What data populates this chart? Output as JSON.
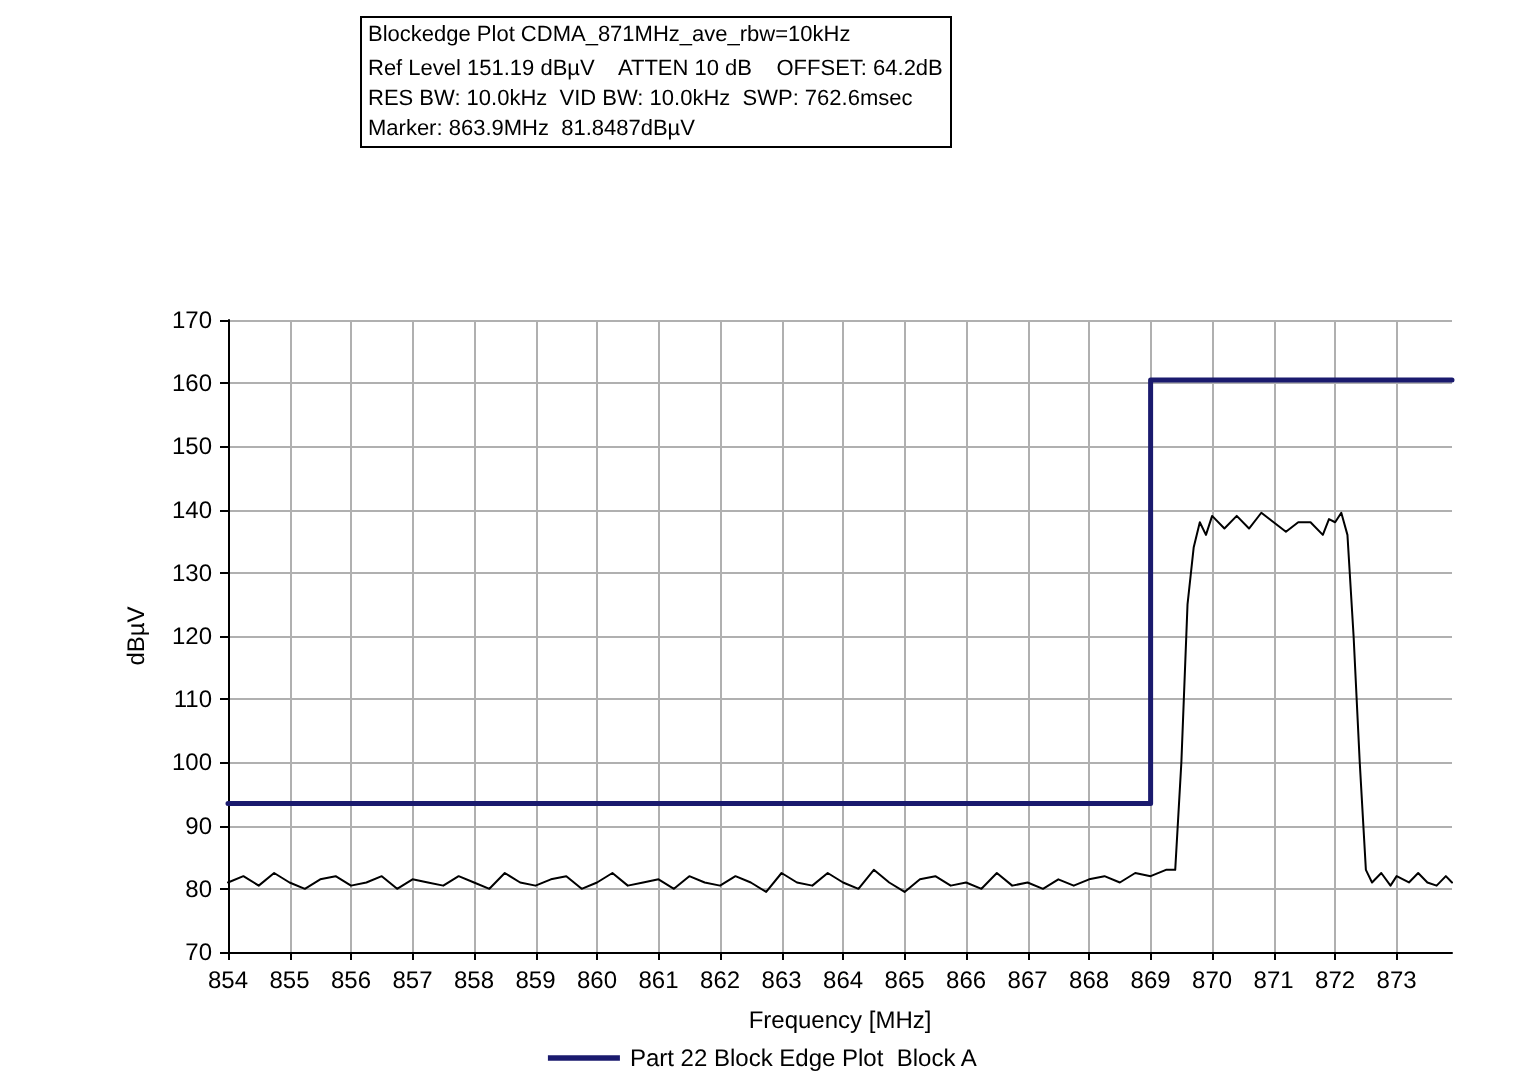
{
  "chart_data": {
    "type": "line",
    "title": "Blockedge Plot CDMA_871MHz_ave_rbw=10kHz",
    "annotations": [
      "Ref Level 151.19 dBµV    ATTEN 10 dB    OFFSET: 64.2dB",
      "RES BW: 10.0kHz  VID BW: 10.0kHz  SWP: 762.6msec",
      "Marker: 863.9MHz  81.8487dBµV"
    ],
    "xlabel": "Frequency [MHz]",
    "ylabel": "dBµV",
    "xlim": [
      854,
      873.9
    ],
    "xticks": [
      854,
      855,
      856,
      857,
      858,
      859,
      860,
      861,
      862,
      863,
      864,
      865,
      866,
      867,
      868,
      869,
      870,
      871,
      872,
      873
    ],
    "ylim": [
      70,
      170
    ],
    "yticks": [
      70,
      80,
      90,
      100,
      110,
      120,
      130,
      140,
      150,
      160,
      170
    ],
    "grid": true,
    "legend": "bottom",
    "marker": "none",
    "line_style": "solid",
    "series": [
      {
        "type": "line",
        "color": "#000000",
        "x": [
          854,
          854.25,
          854.5,
          854.75,
          855,
          855.25,
          855.5,
          855.75,
          856,
          856.25,
          856.5,
          856.75,
          857,
          857.25,
          857.5,
          857.75,
          858,
          858.25,
          858.5,
          858.75,
          859,
          859.25,
          859.5,
          859.75,
          860,
          860.25,
          860.5,
          860.75,
          861,
          861.25,
          861.5,
          861.75,
          862,
          862.25,
          862.5,
          862.75,
          863,
          863.25,
          863.5,
          863.75,
          864,
          864.25,
          864.5,
          864.75,
          865,
          865.25,
          865.5,
          865.75,
          866,
          866.25,
          866.5,
          866.75,
          867,
          867.25,
          867.5,
          867.75,
          868,
          868.25,
          868.5,
          868.75,
          869,
          869.25,
          869.4,
          869.5,
          869.6,
          869.7,
          869.8,
          869.9,
          870,
          870.2,
          870.4,
          870.6,
          870.8,
          871,
          871.2,
          871.4,
          871.6,
          871.8,
          871.9,
          872,
          872.1,
          872.2,
          872.3,
          872.4,
          872.5,
          872.6,
          872.75,
          872.9,
          873,
          873.2,
          873.35,
          873.5,
          873.65,
          873.8,
          873.9
        ],
        "values": [
          81,
          82,
          80.5,
          82.5,
          81,
          80,
          81.5,
          82,
          80.5,
          81,
          82,
          80,
          81.5,
          81,
          80.5,
          82,
          81,
          80,
          82.5,
          81,
          80.5,
          81.5,
          82,
          80,
          81,
          82.5,
          80.5,
          81,
          81.5,
          80,
          82,
          81,
          80.5,
          82,
          81,
          79.5,
          82.5,
          81,
          80.5,
          82.5,
          81,
          80,
          83,
          81,
          79.5,
          81.5,
          82,
          80.5,
          81,
          80,
          82.5,
          80.5,
          81,
          80,
          81.5,
          80.5,
          81.5,
          82,
          81,
          82.5,
          82,
          83,
          83,
          100,
          125,
          134,
          138,
          136,
          139,
          137,
          139,
          137,
          139.5,
          138,
          136.5,
          138,
          138,
          136,
          138.5,
          138,
          139.5,
          136,
          120,
          100,
          83,
          81,
          82.5,
          80.5,
          82,
          81,
          82.5,
          81,
          80.5,
          82,
          81
        ]
      },
      {
        "type": "step",
        "name": "Part 22 Block Edge Plot  Block A",
        "color": "#1a1a6e",
        "x": [
          854,
          869,
          873.9
        ],
        "values": [
          93.5,
          160.5,
          160.5
        ]
      }
    ]
  }
}
